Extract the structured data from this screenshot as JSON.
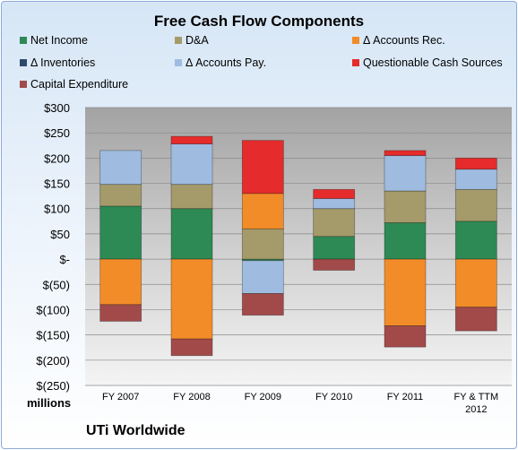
{
  "chart_data": {
    "type": "bar",
    "stacked": true,
    "title": "Free Cash Flow Components",
    "unit_label": "millions",
    "categories": [
      "FY 2007",
      "FY 2008",
      "FY 2009",
      "FY 2010",
      "FY 2011",
      "FY & TTM|2012"
    ],
    "ylim": [
      -250,
      300
    ],
    "yticks": [
      300,
      250,
      200,
      150,
      100,
      50,
      0,
      -50,
      -100,
      -150,
      -200,
      -250
    ],
    "ytick_labels": [
      "$300",
      "$250",
      "$200",
      "$150",
      "$100",
      "$50",
      "$-",
      "$(50)",
      "$(100)",
      "$(150)",
      "$(200)",
      "$(250)"
    ],
    "grid": true,
    "legend_position": "top",
    "series": [
      {
        "name": "Net Income",
        "color": "#2e8a55",
        "values": [
          105,
          100,
          -3,
          45,
          72,
          75
        ]
      },
      {
        "name": "D&A",
        "color": "#a59a6a",
        "values": [
          43,
          48,
          60,
          55,
          63,
          63
        ]
      },
      {
        "name": "Δ Accounts Rec.",
        "color": "#f28c28",
        "values": [
          -90,
          -158,
          70,
          0,
          -132,
          -95
        ]
      },
      {
        "name": "Δ Inventories",
        "color": "#2c4a6b",
        "values": [
          0,
          0,
          0,
          0,
          0,
          0
        ]
      },
      {
        "name": "Δ Accounts Pay.",
        "color": "#9fbce0",
        "values": [
          67,
          80,
          -65,
          20,
          70,
          40
        ]
      },
      {
        "name": "Questionable Cash Sources",
        "color": "#e52b2b",
        "values": [
          0,
          15,
          105,
          18,
          10,
          22
        ]
      },
      {
        "name": "Capital Expenditure",
        "color": "#a24a4a",
        "values": [
          -33,
          -33,
          -43,
          -22,
          -42,
          -47
        ]
      }
    ]
  },
  "footer": {
    "company": "UTi Worldwide"
  }
}
